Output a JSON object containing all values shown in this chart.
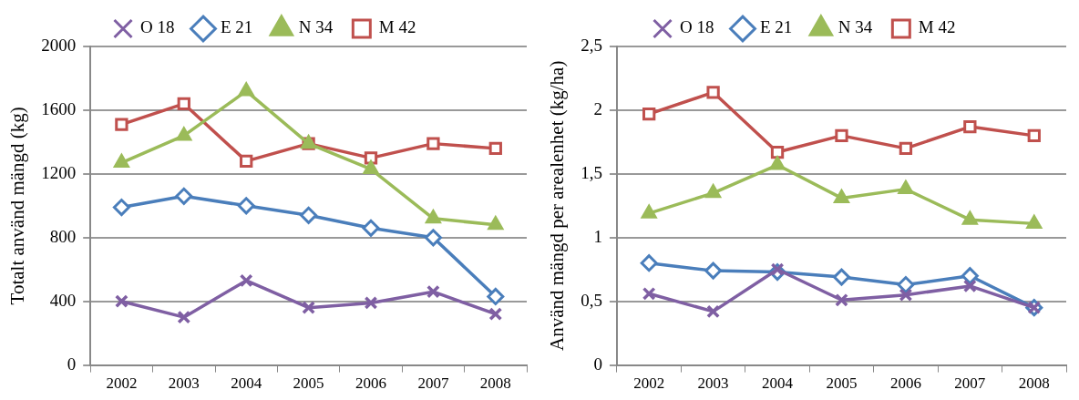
{
  "chart_data": [
    {
      "type": "line",
      "ylabel": "Totalt använd mängd (kg)",
      "categories": [
        "2002",
        "2003",
        "2004",
        "2005",
        "2006",
        "2007",
        "2008"
      ],
      "series": [
        {
          "name": "O 18",
          "color": "#7f5fa3",
          "marker": "cross",
          "values": [
            400,
            300,
            530,
            360,
            390,
            460,
            320
          ]
        },
        {
          "name": "E 21",
          "color": "#4a7ebb",
          "marker": "diamond",
          "values": [
            990,
            1060,
            1000,
            940,
            860,
            800,
            430
          ]
        },
        {
          "name": "N 34",
          "color": "#9bbb59",
          "marker": "triangle",
          "values": [
            1270,
            1440,
            1720,
            1390,
            1230,
            920,
            880
          ]
        },
        {
          "name": "M 42",
          "color": "#c0504d",
          "marker": "square",
          "values": [
            1510,
            1640,
            1280,
            1390,
            1300,
            1390,
            1360
          ]
        }
      ],
      "ylim": [
        0,
        2000
      ],
      "yticks": [
        0,
        400,
        800,
        1200,
        1600,
        2000
      ],
      "grid": "y",
      "legend": "top"
    },
    {
      "type": "line",
      "ylabel": "Använd mängd per arealenhet (kg/ha)",
      "categories": [
        "2002",
        "2003",
        "2004",
        "2005",
        "2006",
        "2007",
        "2008"
      ],
      "series": [
        {
          "name": "O 18",
          "color": "#7f5fa3",
          "marker": "cross",
          "values": [
            0.56,
            0.42,
            0.75,
            0.51,
            0.55,
            0.62,
            0.45
          ]
        },
        {
          "name": "E 21",
          "color": "#4a7ebb",
          "marker": "diamond",
          "values": [
            0.8,
            0.74,
            0.73,
            0.69,
            0.63,
            0.7,
            0.45
          ]
        },
        {
          "name": "N 34",
          "color": "#9bbb59",
          "marker": "triangle",
          "values": [
            1.19,
            1.35,
            1.57,
            1.31,
            1.38,
            1.14,
            1.11
          ]
        },
        {
          "name": "M 42",
          "color": "#c0504d",
          "marker": "square",
          "values": [
            1.97,
            2.14,
            1.67,
            1.8,
            1.7,
            1.87,
            1.8
          ]
        }
      ],
      "ylim": [
        0,
        2.5
      ],
      "yticks": [
        0,
        {
          "value": 0.5,
          "label": "0,5"
        },
        1,
        {
          "value": 1.5,
          "label": "1,5"
        },
        2,
        {
          "value": 2.5,
          "label": "2,5"
        }
      ],
      "grid": "y",
      "legend": "top"
    }
  ]
}
